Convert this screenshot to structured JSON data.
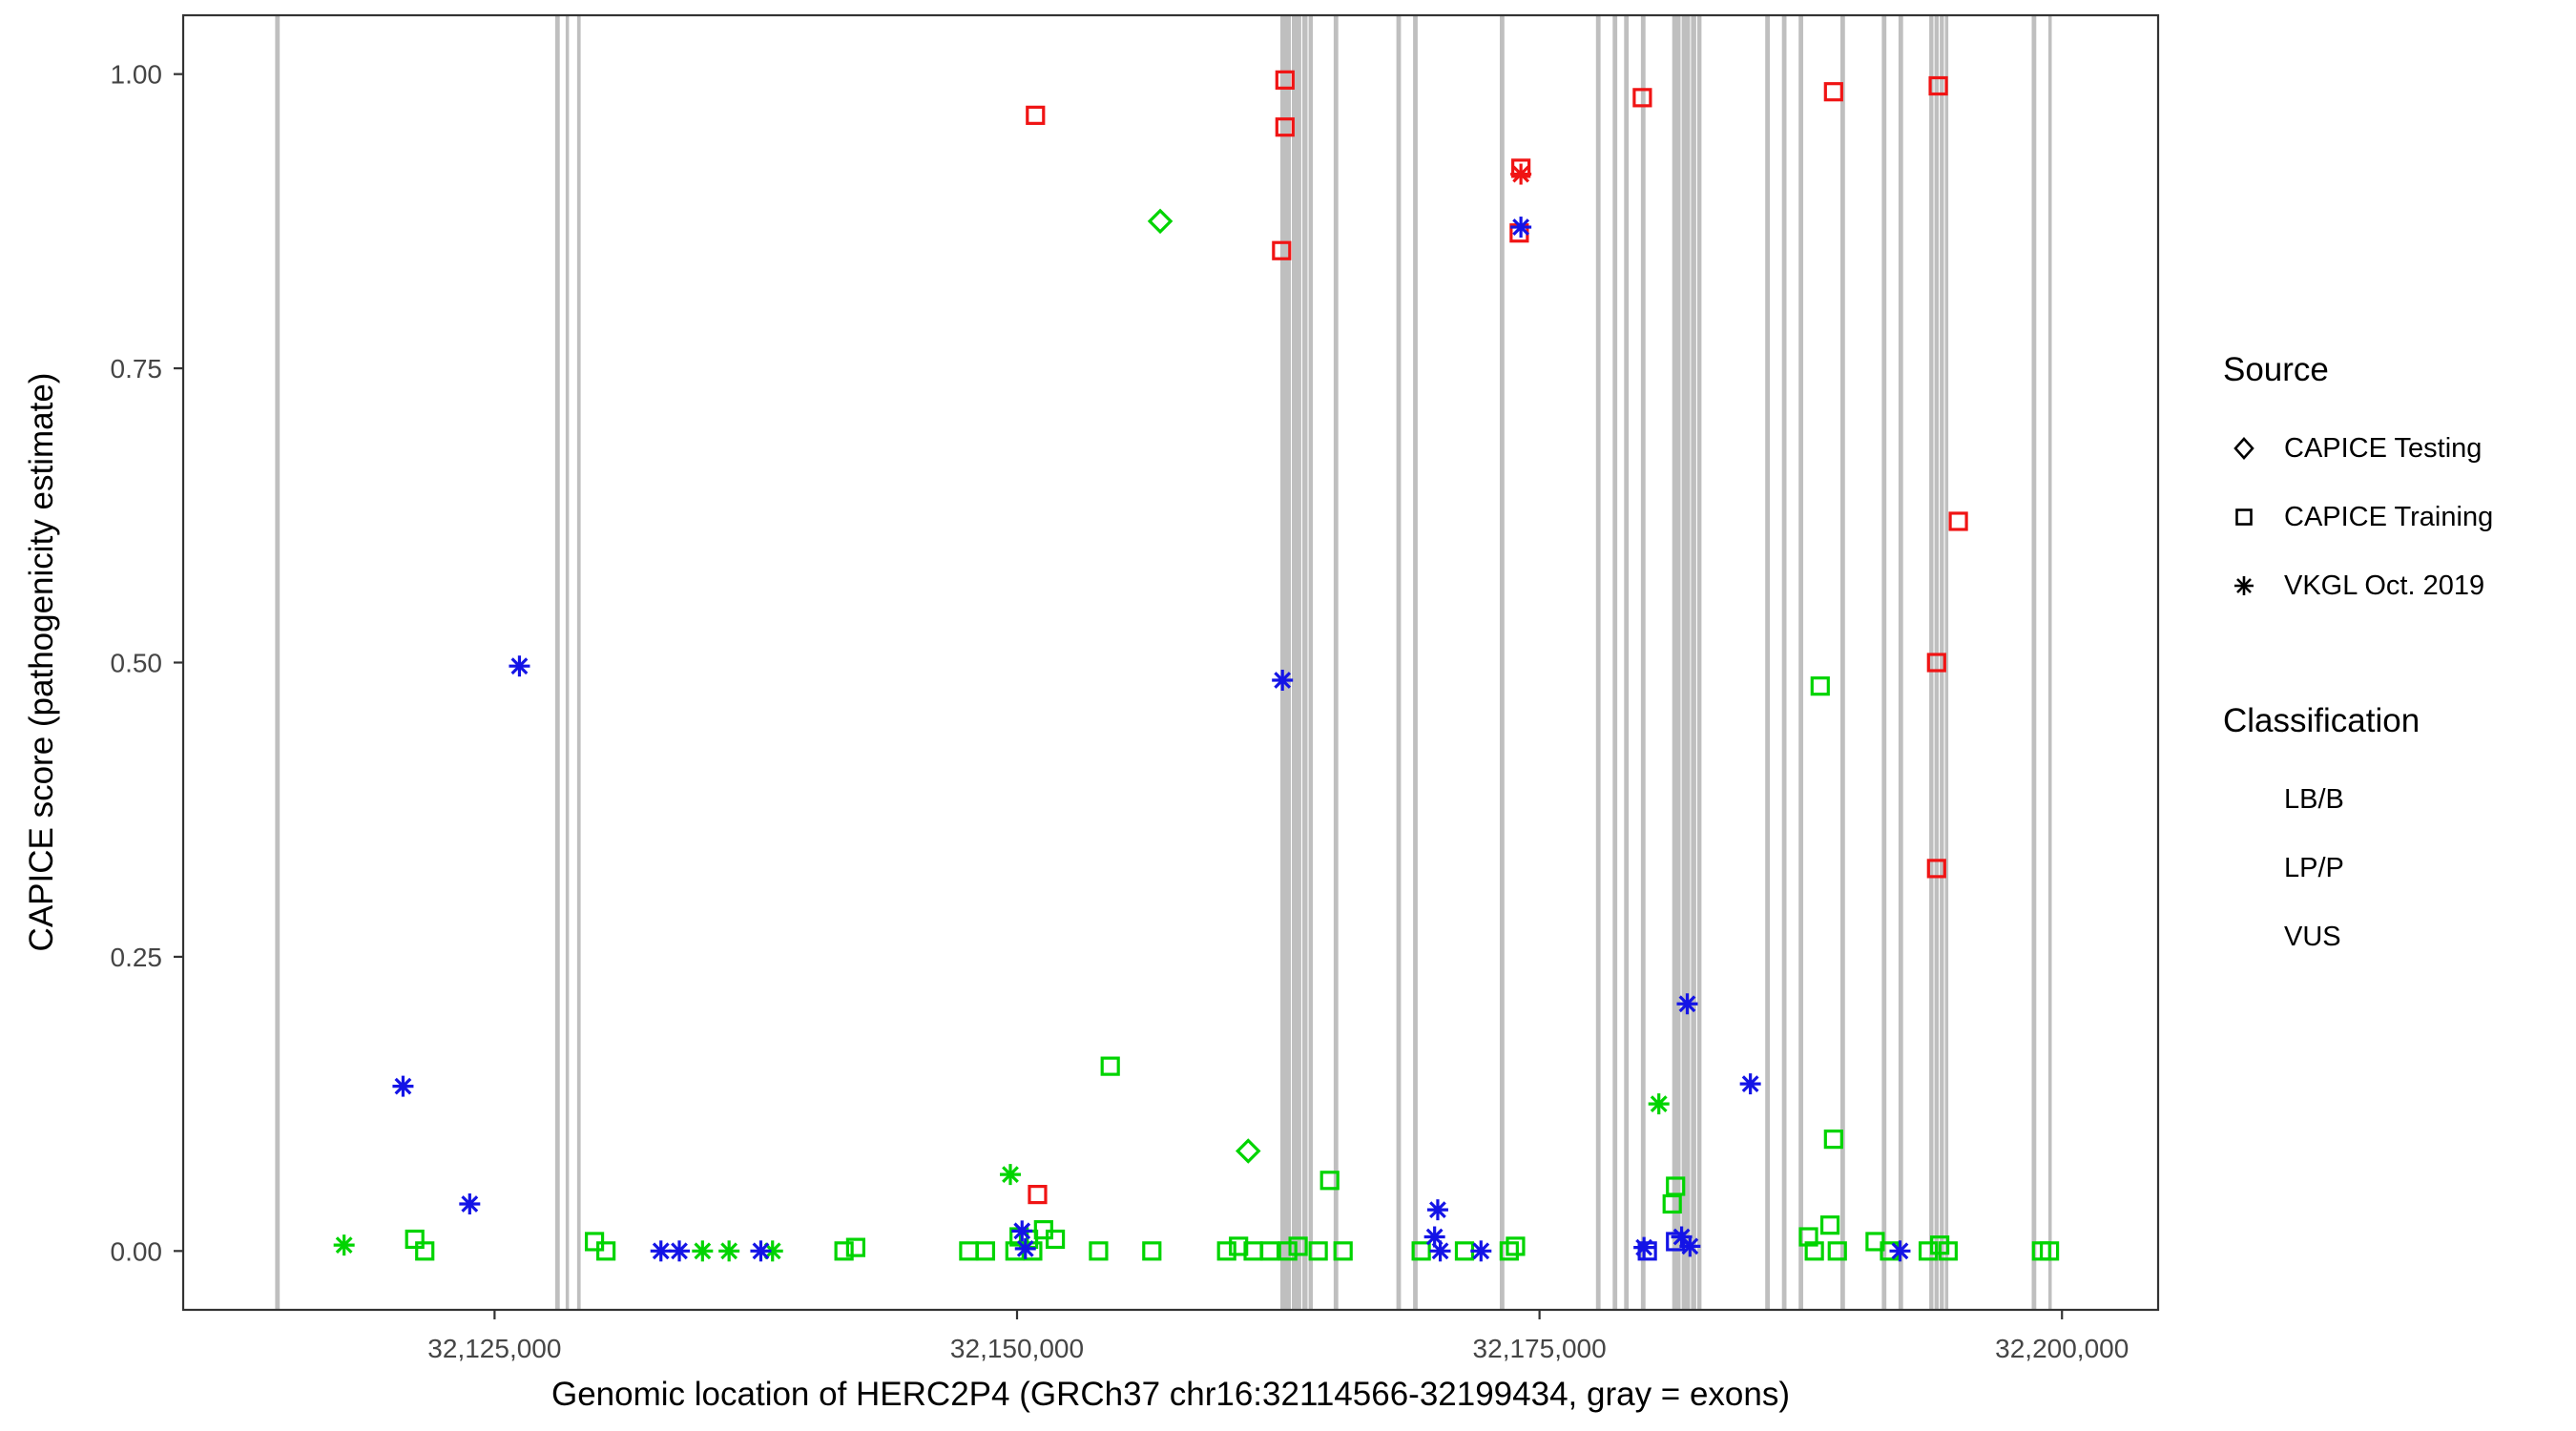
{
  "legend": {
    "source_title": "Source",
    "source_items": [
      {
        "label": "CAPICE Testing",
        "shape": "diamond"
      },
      {
        "label": "CAPICE Training",
        "shape": "square"
      },
      {
        "label": "VKGL Oct. 2019",
        "shape": "asterisk"
      }
    ],
    "classification_title": "Classification",
    "classification_items": [
      {
        "label": "LB/B",
        "color": "#00d400"
      },
      {
        "label": "LP/P",
        "color": "#f01414"
      },
      {
        "label": "VUS",
        "color": "#1414e6"
      }
    ]
  },
  "chart_data": {
    "type": "scatter",
    "title": "",
    "xlabel": "Genomic location of HERC2P4 (GRCh37 chr16:32114566-32199434, gray = exons)",
    "ylabel": "CAPICE score (pathogenicity estimate)",
    "xlim": [
      32110100,
      32204600
    ],
    "ylim": [
      -0.05,
      1.05
    ],
    "grid": false,
    "legend_position": "right",
    "x_ticks": [
      {
        "value": 32125000,
        "label": "32,125,000"
      },
      {
        "value": 32150000,
        "label": "32,150,000"
      },
      {
        "value": 32175000,
        "label": "32,175,000"
      },
      {
        "value": 32200000,
        "label": "32,200,000"
      }
    ],
    "y_ticks": [
      {
        "value": 0.0,
        "label": "0.00"
      },
      {
        "value": 0.25,
        "label": "0.25"
      },
      {
        "value": 0.5,
        "label": "0.50"
      },
      {
        "value": 0.75,
        "label": "0.75"
      },
      {
        "value": 1.0,
        "label": "1.00"
      }
    ],
    "exon_color": "#bfbfbf",
    "exons": [
      [
        32114500,
        32114720
      ],
      [
        32127900,
        32128120
      ],
      [
        32128400,
        32128560
      ],
      [
        32128950,
        32129120
      ],
      [
        32162600,
        32163100
      ],
      [
        32163150,
        32163600
      ],
      [
        32163650,
        32163900
      ],
      [
        32163950,
        32164150
      ],
      [
        32165150,
        32165370
      ],
      [
        32168150,
        32168370
      ],
      [
        32168950,
        32169170
      ],
      [
        32173100,
        32173320
      ],
      [
        32177700,
        32177920
      ],
      [
        32178500,
        32178720
      ],
      [
        32179050,
        32179270
      ],
      [
        32179850,
        32180070
      ],
      [
        32181350,
        32181750
      ],
      [
        32181800,
        32182200
      ],
      [
        32182250,
        32182500
      ],
      [
        32182550,
        32182750
      ],
      [
        32185800,
        32186020
      ],
      [
        32186600,
        32186820
      ],
      [
        32187400,
        32187620
      ],
      [
        32189400,
        32189620
      ],
      [
        32191380,
        32191600
      ],
      [
        32192180,
        32192400
      ],
      [
        32193650,
        32193850
      ],
      [
        32193900,
        32194100
      ],
      [
        32194150,
        32194350
      ],
      [
        32194400,
        32194560
      ],
      [
        32198550,
        32198770
      ],
      [
        32199350,
        32199500
      ]
    ],
    "colors": {
      "LB/B": "#00d400",
      "LP/P": "#f01414",
      "VUS": "#1414e6"
    },
    "shapes": {
      "testing": "diamond",
      "training": "square",
      "vkgl": "asterisk"
    },
    "source_labels": {
      "testing": "CAPICE Testing",
      "training": "CAPICE Training",
      "vkgl": "VKGL Oct. 2019"
    },
    "points_format": [
      "x",
      "y",
      "source",
      "classification"
    ],
    "points": [
      [
        32121180,
        0.01,
        "training",
        "LB/B"
      ],
      [
        32121660,
        0.0,
        "training",
        "LB/B"
      ],
      [
        32129780,
        0.008,
        "training",
        "LB/B"
      ],
      [
        32130330,
        0.0,
        "training",
        "LB/B"
      ],
      [
        32141720,
        0.0,
        "training",
        "LB/B"
      ],
      [
        32142280,
        0.003,
        "training",
        "LB/B"
      ],
      [
        32147690,
        0.0,
        "training",
        "LB/B"
      ],
      [
        32148490,
        0.0,
        "training",
        "LB/B"
      ],
      [
        32149900,
        0.0,
        "training",
        "LB/B"
      ],
      [
        32150100,
        0.012,
        "training",
        "LB/B"
      ],
      [
        32150550,
        0.01,
        "training",
        "LB/B"
      ],
      [
        32150750,
        0.0,
        "training",
        "LB/B"
      ],
      [
        32151270,
        0.018,
        "training",
        "LB/B"
      ],
      [
        32151830,
        0.01,
        "training",
        "LB/B"
      ],
      [
        32153900,
        0.0,
        "training",
        "LB/B"
      ],
      [
        32154460,
        0.157,
        "training",
        "LB/B"
      ],
      [
        32156450,
        0.0,
        "training",
        "LB/B"
      ],
      [
        32160030,
        0.0,
        "training",
        "LB/B"
      ],
      [
        32160600,
        0.004,
        "training",
        "LB/B"
      ],
      [
        32161300,
        0.0,
        "training",
        "LB/B"
      ],
      [
        32162100,
        0.0,
        "training",
        "LB/B"
      ],
      [
        32162950,
        0.0,
        "training",
        "LB/B"
      ],
      [
        32163450,
        0.004,
        "training",
        "LB/B"
      ],
      [
        32164410,
        0.0,
        "training",
        "LB/B"
      ],
      [
        32164960,
        0.06,
        "training",
        "LB/B"
      ],
      [
        32165600,
        0.0,
        "training",
        "LB/B"
      ],
      [
        32169340,
        0.0,
        "training",
        "LB/B"
      ],
      [
        32171410,
        0.0,
        "training",
        "LB/B"
      ],
      [
        32173550,
        0.0,
        "training",
        "LB/B"
      ],
      [
        32173850,
        0.004,
        "training",
        "LB/B"
      ],
      [
        32181350,
        0.04,
        "training",
        "LB/B"
      ],
      [
        32181510,
        0.055,
        "training",
        "LB/B"
      ],
      [
        32187870,
        0.012,
        "training",
        "LB/B"
      ],
      [
        32188150,
        0.0,
        "training",
        "LB/B"
      ],
      [
        32188430,
        0.48,
        "training",
        "LB/B"
      ],
      [
        32188900,
        0.022,
        "training",
        "LB/B"
      ],
      [
        32189070,
        0.095,
        "training",
        "LB/B"
      ],
      [
        32189250,
        0.0,
        "training",
        "LB/B"
      ],
      [
        32191060,
        0.008,
        "training",
        "LB/B"
      ],
      [
        32191750,
        0.0,
        "training",
        "LB/B"
      ],
      [
        32193600,
        0.0,
        "training",
        "LB/B"
      ],
      [
        32194150,
        0.005,
        "training",
        "LB/B"
      ],
      [
        32194550,
        0.0,
        "training",
        "LB/B"
      ],
      [
        32199020,
        0.0,
        "training",
        "LB/B"
      ],
      [
        32199400,
        0.0,
        "training",
        "LB/B"
      ],
      [
        32150880,
        0.965,
        "training",
        "LP/P"
      ],
      [
        32150980,
        0.048,
        "training",
        "LP/P"
      ],
      [
        32162660,
        0.85,
        "training",
        "LP/P"
      ],
      [
        32162820,
        0.955,
        "training",
        "LP/P"
      ],
      [
        32162820,
        0.995,
        "training",
        "LP/P"
      ],
      [
        32174030,
        0.865,
        "training",
        "LP/P"
      ],
      [
        32174110,
        0.92,
        "training",
        "LP/P"
      ],
      [
        32179920,
        0.98,
        "training",
        "LP/P"
      ],
      [
        32189070,
        0.985,
        "training",
        "LP/P"
      ],
      [
        32194000,
        0.5,
        "training",
        "LP/P"
      ],
      [
        32194000,
        0.325,
        "training",
        "LP/P"
      ],
      [
        32194080,
        0.99,
        "training",
        "LP/P"
      ],
      [
        32195040,
        0.62,
        "training",
        "LP/P"
      ],
      [
        32180160,
        0.0,
        "training",
        "VUS"
      ],
      [
        32181510,
        0.008,
        "training",
        "VUS"
      ],
      [
        32156850,
        0.875,
        "testing",
        "LB/B"
      ],
      [
        32161060,
        0.085,
        "testing",
        "LB/B"
      ],
      [
        32117800,
        0.005,
        "vkgl",
        "LB/B"
      ],
      [
        32134950,
        0.0,
        "vkgl",
        "LB/B"
      ],
      [
        32136220,
        0.0,
        "vkgl",
        "LB/B"
      ],
      [
        32138300,
        0.0,
        "vkgl",
        "LB/B"
      ],
      [
        32149680,
        0.065,
        "vkgl",
        "LB/B"
      ],
      [
        32180710,
        0.125,
        "vkgl",
        "LB/B"
      ],
      [
        32120620,
        0.14,
        "vkgl",
        "VUS"
      ],
      [
        32123810,
        0.04,
        "vkgl",
        "VUS"
      ],
      [
        32126190,
        0.497,
        "vkgl",
        "VUS"
      ],
      [
        32132960,
        0.0,
        "vkgl",
        "VUS"
      ],
      [
        32133840,
        0.0,
        "vkgl",
        "VUS"
      ],
      [
        32137740,
        0.0,
        "vkgl",
        "VUS"
      ],
      [
        32150240,
        0.017,
        "vkgl",
        "VUS"
      ],
      [
        32150400,
        0.002,
        "vkgl",
        "VUS"
      ],
      [
        32162700,
        0.485,
        "vkgl",
        "VUS"
      ],
      [
        32169980,
        0.012,
        "vkgl",
        "VUS"
      ],
      [
        32170130,
        0.035,
        "vkgl",
        "VUS"
      ],
      [
        32170250,
        0.0,
        "vkgl",
        "VUS"
      ],
      [
        32172200,
        0.0,
        "vkgl",
        "VUS"
      ],
      [
        32174110,
        0.87,
        "vkgl",
        "VUS"
      ],
      [
        32180000,
        0.003,
        "vkgl",
        "VUS"
      ],
      [
        32181800,
        0.012,
        "vkgl",
        "VUS"
      ],
      [
        32182070,
        0.21,
        "vkgl",
        "VUS"
      ],
      [
        32182200,
        0.004,
        "vkgl",
        "VUS"
      ],
      [
        32185090,
        0.142,
        "vkgl",
        "VUS"
      ],
      [
        32192250,
        0.0,
        "vkgl",
        "VUS"
      ],
      [
        32174110,
        0.915,
        "vkgl",
        "LP/P"
      ]
    ]
  }
}
